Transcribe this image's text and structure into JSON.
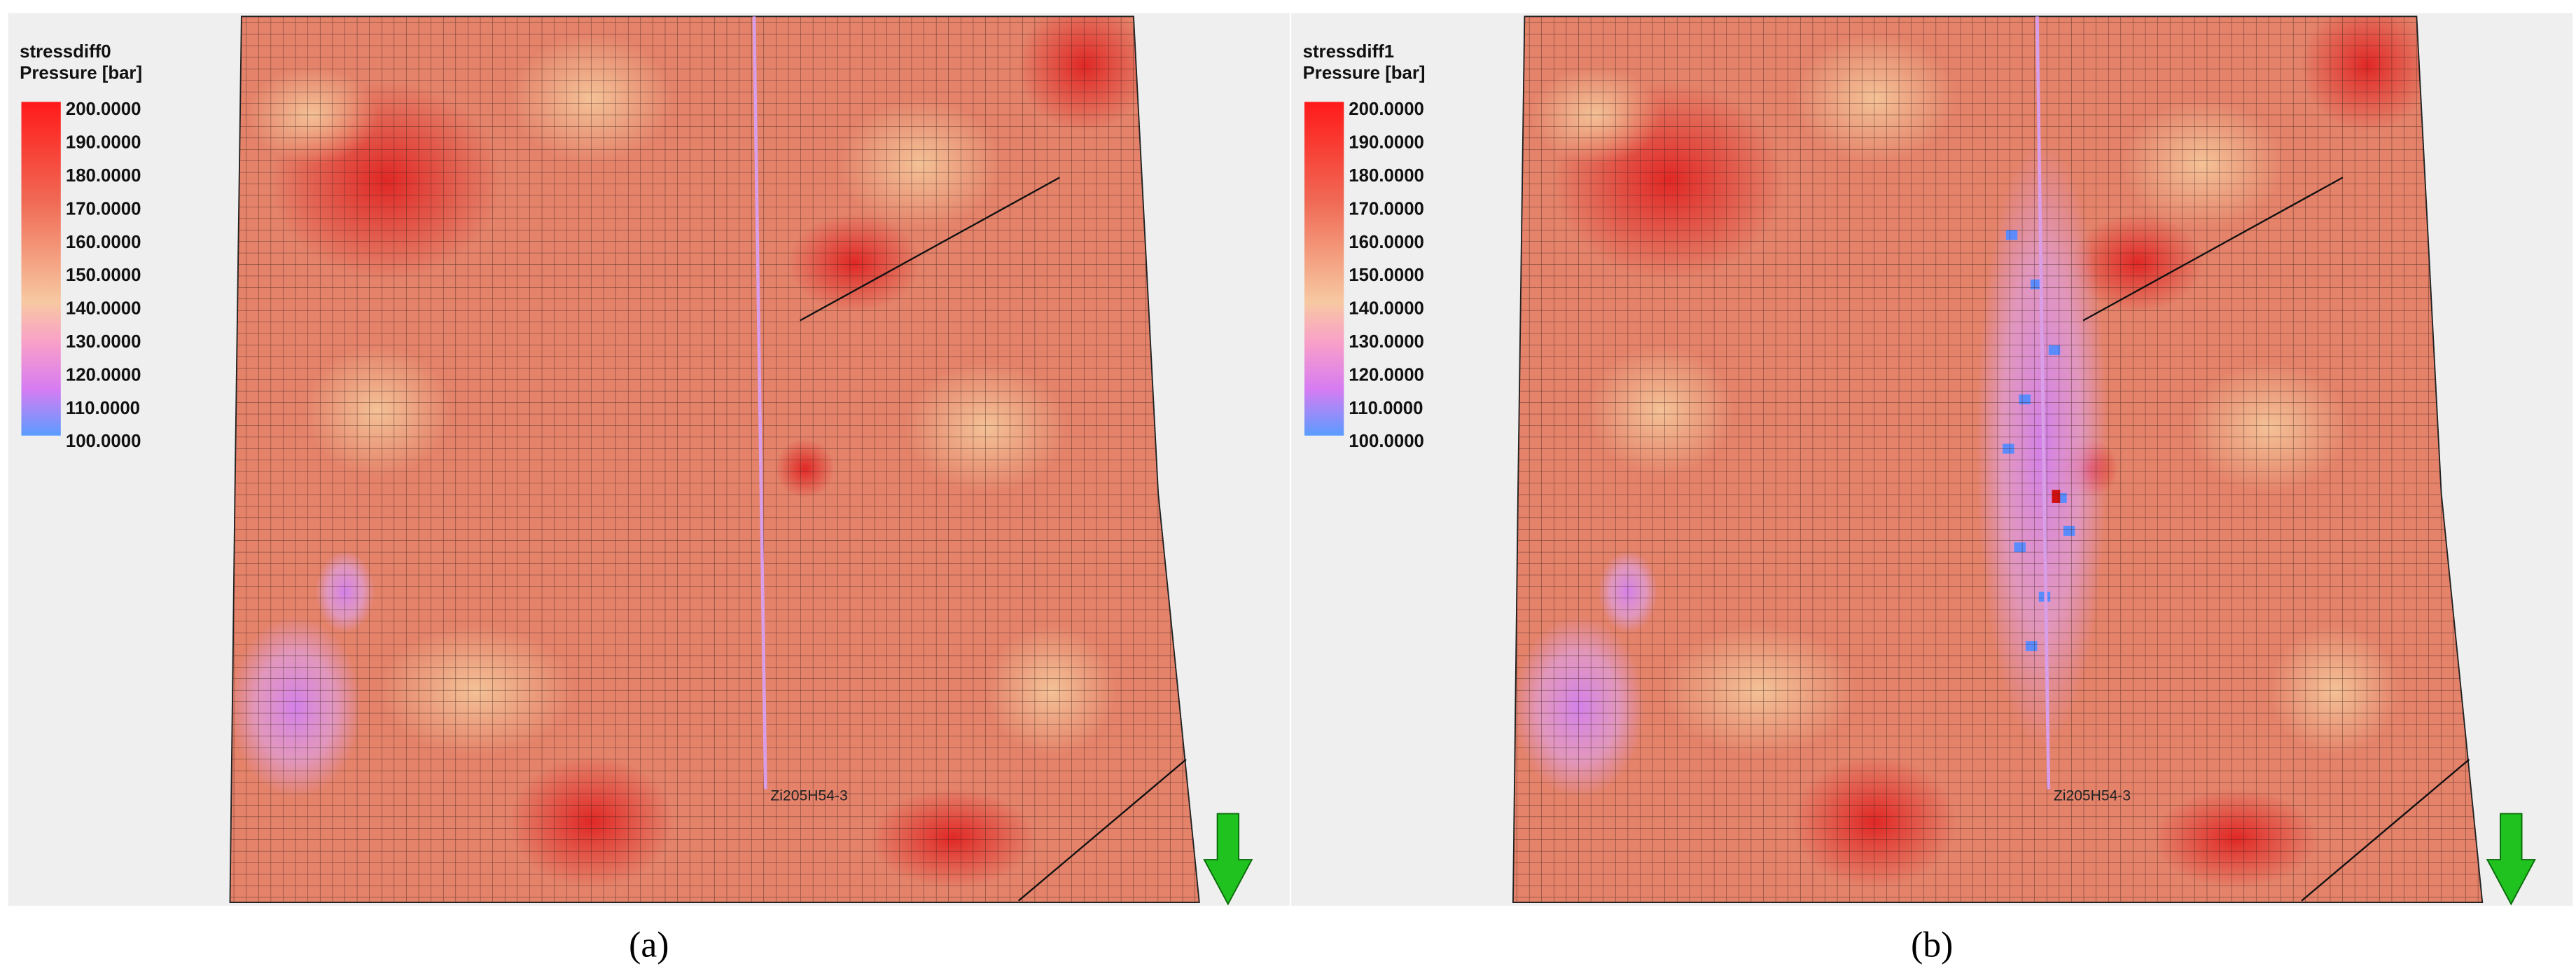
{
  "panels": [
    {
      "legend": {
        "title": "stressdiff0",
        "unit": "Pressure [bar]",
        "labels": [
          "200.0000",
          "190.0000",
          "180.0000",
          "170.0000",
          "160.0000",
          "150.0000",
          "140.0000",
          "130.0000",
          "120.0000",
          "110.0000",
          "100.0000"
        ]
      },
      "well_label": "Zi205H54-3",
      "caption": "(a)"
    },
    {
      "legend": {
        "title": "stressdiff1",
        "unit": "Pressure [bar]",
        "labels": [
          "200.0000",
          "190.0000",
          "180.0000",
          "170.0000",
          "160.0000",
          "150.0000",
          "140.0000",
          "130.0000",
          "120.0000",
          "110.0000",
          "100.0000"
        ]
      },
      "well_label": "Zi205H54-3",
      "caption": "(b)"
    }
  ]
}
